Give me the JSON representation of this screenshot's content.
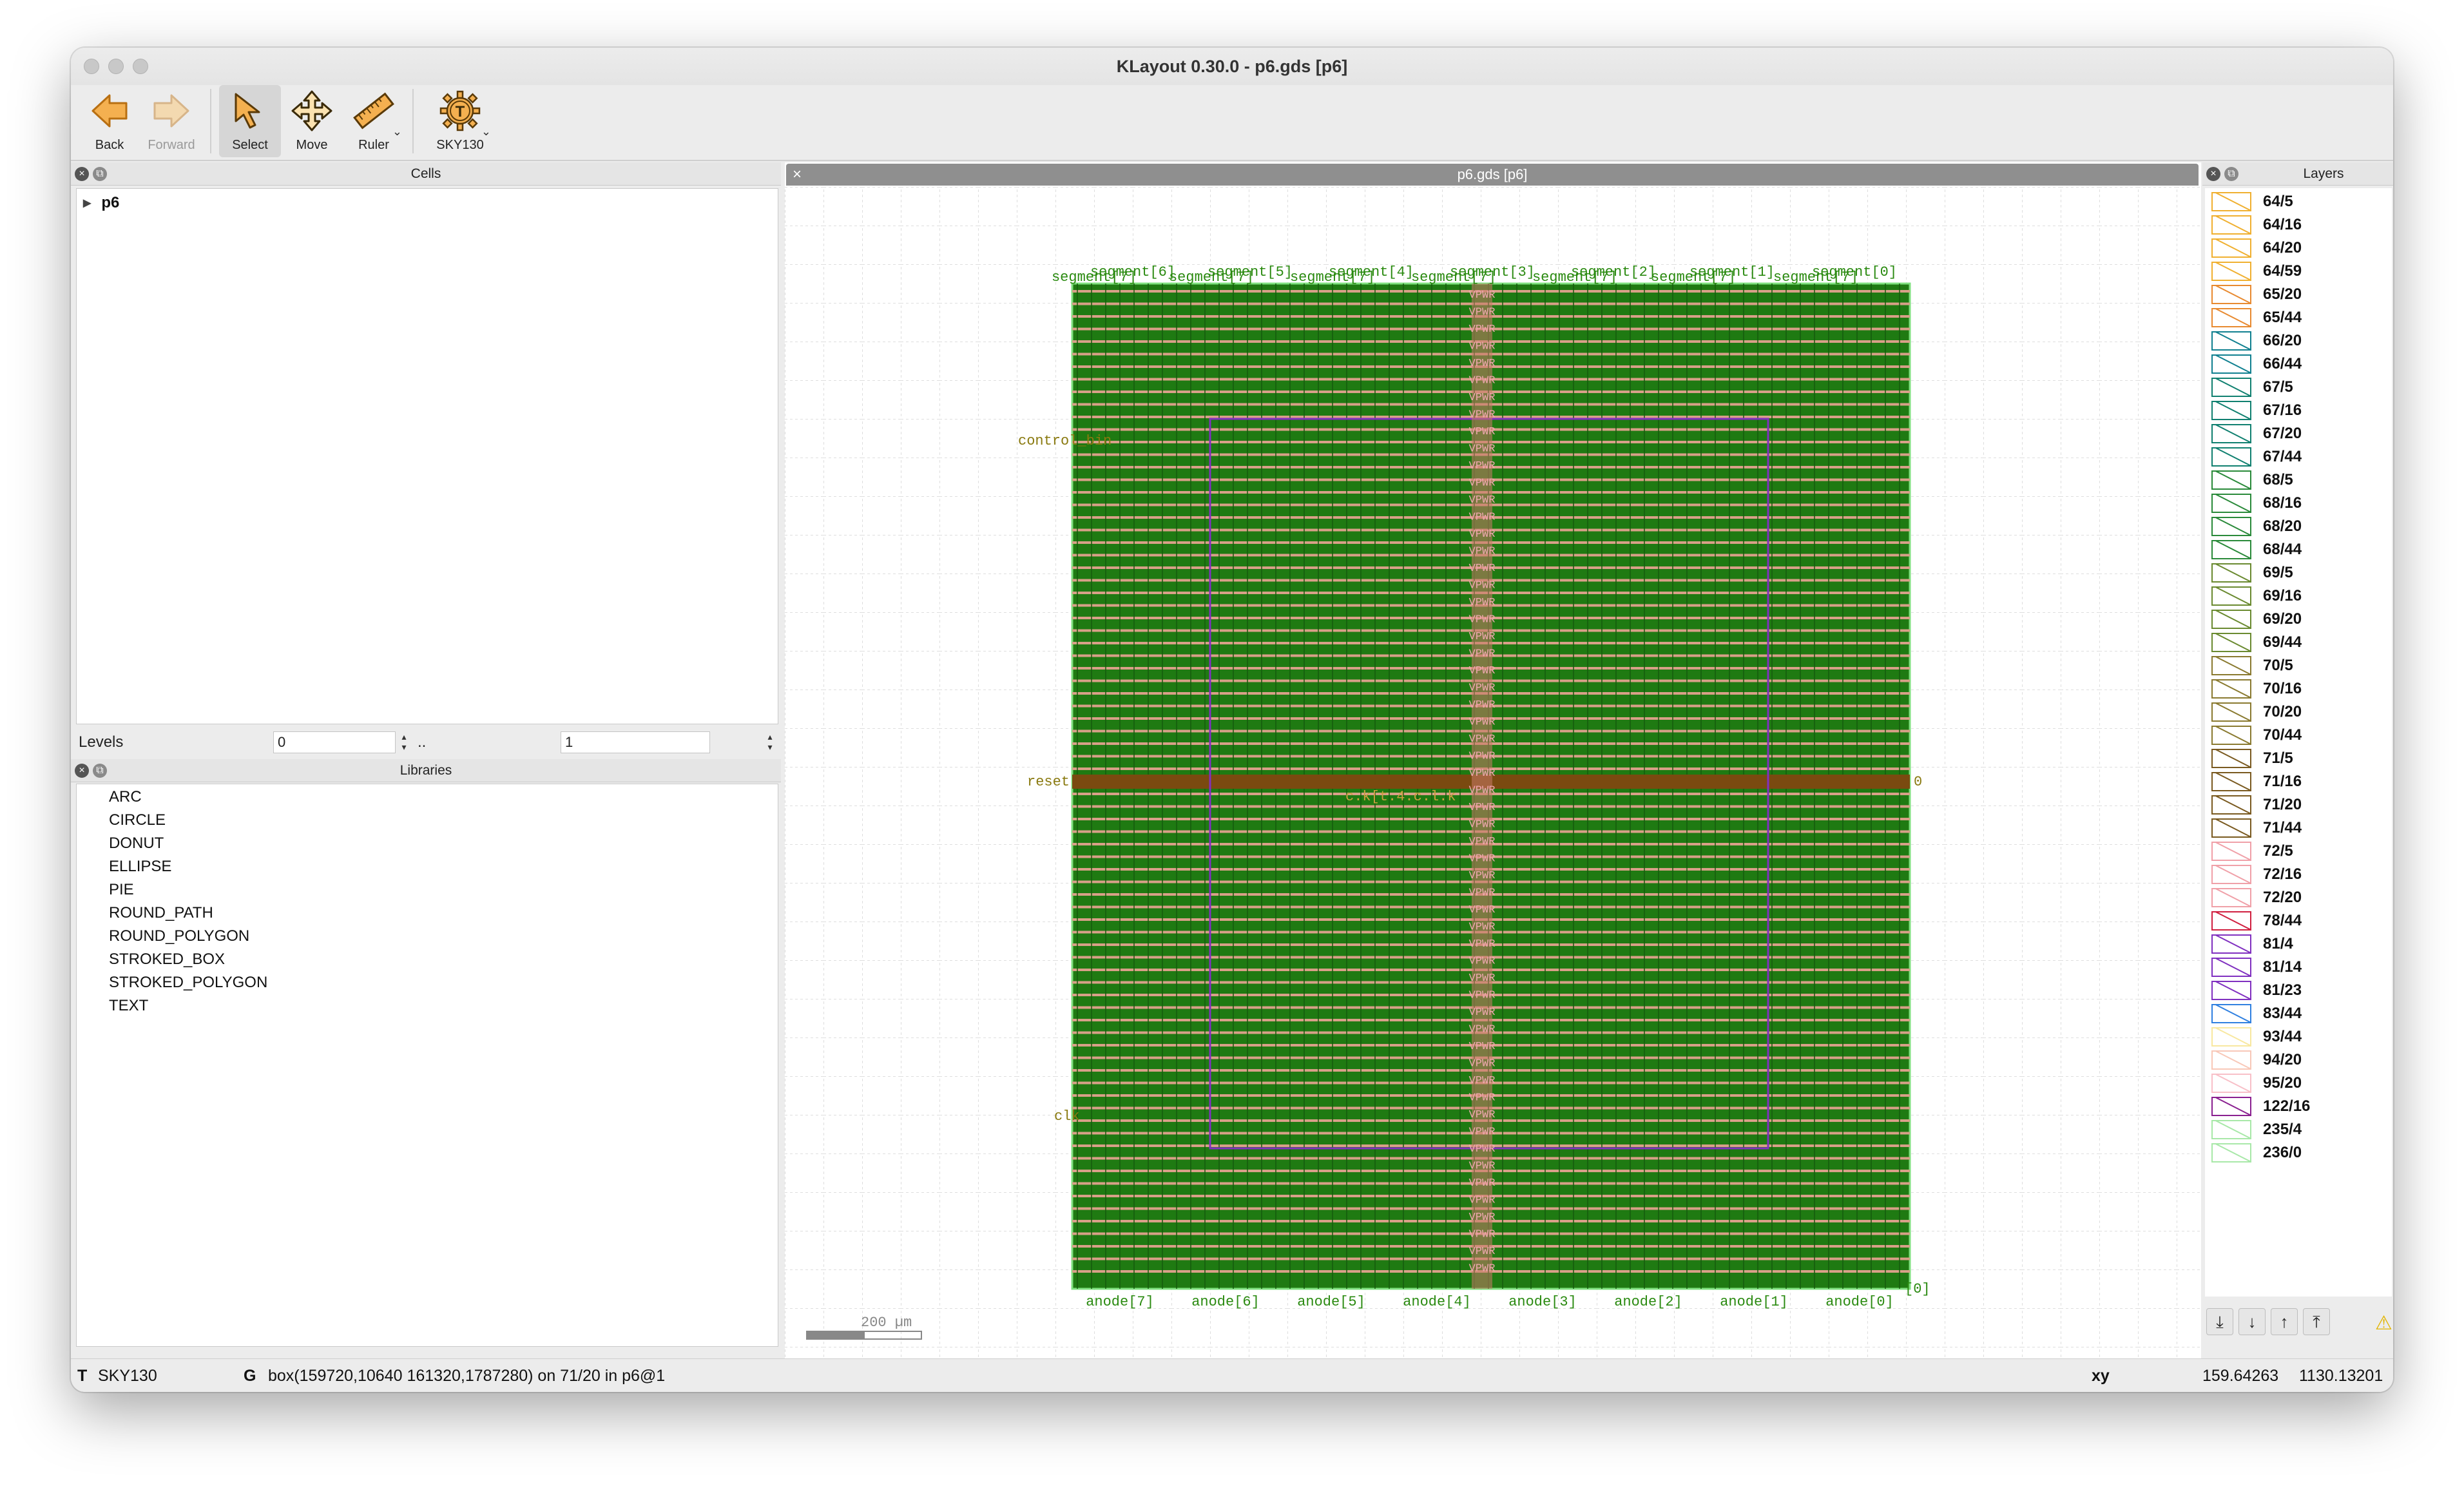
{
  "window": {
    "title": "KLayout 0.30.0 - p6.gds [p6]"
  },
  "toolbar": {
    "back": "Back",
    "forward": "Forward",
    "select": "Select",
    "move": "Move",
    "ruler": "Ruler",
    "tech": "SKY130",
    "tech_icon_letter": "T"
  },
  "cells": {
    "title": "Cells",
    "top_cell": "p6",
    "levels_label": "Levels",
    "level_min": "0",
    "level_sep": "..",
    "level_max": "1"
  },
  "libraries": {
    "title": "Libraries",
    "items": [
      "ARC",
      "CIRCLE",
      "DONUT",
      "ELLIPSE",
      "PIE",
      "ROUND_PATH",
      "ROUND_POLYGON",
      "STROKED_BOX",
      "STROKED_POLYGON",
      "TEXT"
    ]
  },
  "canvas": {
    "tab_title": "p6.gds [p6]",
    "scale_label": "200 µm",
    "labels": {
      "control": "control_bin",
      "reset": "reset",
      "clk": "clk",
      "clk_center": "c.k[t.4.c.l.k",
      "vpwr": "VPWR",
      "right_zero": "0",
      "segment_top": [
        "segment[6]",
        "segment[5]",
        "segment[4]",
        "segment[3]",
        "segment[2]",
        "segment[1]",
        "segment[0]"
      ],
      "segment_overlap": [
        "segment[7]",
        "segment[7]",
        "segment[7]",
        "segment[7]",
        "segment[7]",
        "segment[7]",
        "segment[7]"
      ],
      "anode": [
        "anode[7]",
        "anode[6]",
        "anode[5]",
        "anode[4]",
        "anode[3]",
        "anode[2]",
        "anode[1]",
        "anode[0]"
      ],
      "anode_right": "[0]"
    }
  },
  "layers": {
    "title": "Layers",
    "items": [
      {
        "name": "64/5",
        "color": "#f0b030"
      },
      {
        "name": "64/16",
        "color": "#f0b030"
      },
      {
        "name": "64/20",
        "color": "#f0b030"
      },
      {
        "name": "64/59",
        "color": "#f0b030"
      },
      {
        "name": "65/20",
        "color": "#e88a30"
      },
      {
        "name": "65/44",
        "color": "#e88a30"
      },
      {
        "name": "66/20",
        "color": "#108090"
      },
      {
        "name": "66/44",
        "color": "#108090"
      },
      {
        "name": "67/5",
        "color": "#108070"
      },
      {
        "name": "67/16",
        "color": "#108070"
      },
      {
        "name": "67/20",
        "color": "#108070"
      },
      {
        "name": "67/44",
        "color": "#108070"
      },
      {
        "name": "68/5",
        "color": "#2a8a3a"
      },
      {
        "name": "68/16",
        "color": "#2a8a3a"
      },
      {
        "name": "68/20",
        "color": "#2a8a3a"
      },
      {
        "name": "68/44",
        "color": "#2a8a3a"
      },
      {
        "name": "69/5",
        "color": "#6a8a30"
      },
      {
        "name": "69/16",
        "color": "#6a8a30"
      },
      {
        "name": "69/20",
        "color": "#6a8a30"
      },
      {
        "name": "69/44",
        "color": "#6a8a30"
      },
      {
        "name": "70/5",
        "color": "#8a7a30"
      },
      {
        "name": "70/16",
        "color": "#8a7a30"
      },
      {
        "name": "70/20",
        "color": "#8a7a30"
      },
      {
        "name": "70/44",
        "color": "#8a7a30"
      },
      {
        "name": "71/5",
        "color": "#7a5a20"
      },
      {
        "name": "71/16",
        "color": "#7a5a20"
      },
      {
        "name": "71/20",
        "color": "#7a5a20"
      },
      {
        "name": "71/44",
        "color": "#7a5a20"
      },
      {
        "name": "72/5",
        "color": "#f0a0a8"
      },
      {
        "name": "72/16",
        "color": "#f0a0a8"
      },
      {
        "name": "72/20",
        "color": "#f0a0a8"
      },
      {
        "name": "78/44",
        "color": "#d02040"
      },
      {
        "name": "81/4",
        "color": "#8030c0"
      },
      {
        "name": "81/14",
        "color": "#8030c0"
      },
      {
        "name": "81/23",
        "color": "#8030c0"
      },
      {
        "name": "83/44",
        "color": "#3080e0"
      },
      {
        "name": "93/44",
        "color": "#f8e8a0"
      },
      {
        "name": "94/20",
        "color": "#f8c8b8"
      },
      {
        "name": "95/20",
        "color": "#f8c0c8"
      },
      {
        "name": "122/16",
        "color": "#8a2090"
      },
      {
        "name": "235/4",
        "color": "#a8e8a8"
      },
      {
        "name": "236/0",
        "color": "#a8e8a8"
      }
    ]
  },
  "status": {
    "tech_prefix": "T",
    "tech": "SKY130",
    "g_prefix": "G",
    "selection": "box(159720,10640 161320,1787280) on 71/20 in p6@1",
    "xy_label": "xy",
    "x": "159.64263",
    "y": "1130.13201"
  }
}
